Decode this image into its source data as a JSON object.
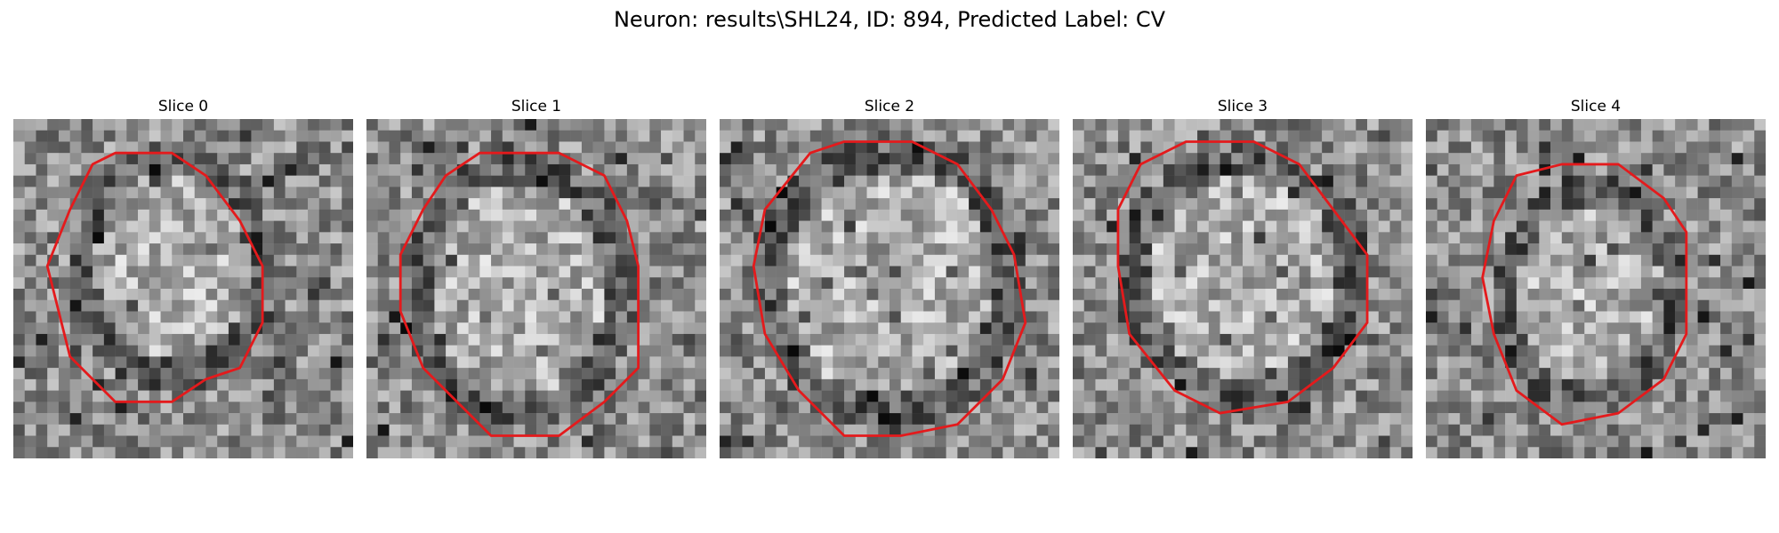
{
  "figure": {
    "title": "Neuron: results\\SHL24, ID: 894, Predicted Label: CV",
    "contour_color": "#e41a1c",
    "slices": [
      {
        "label": "Slice 0",
        "contour": [
          [
            7,
            4
          ],
          [
            9,
            3
          ],
          [
            14,
            3
          ],
          [
            17,
            5
          ],
          [
            20,
            9
          ],
          [
            22,
            13
          ],
          [
            22,
            18
          ],
          [
            20,
            22
          ],
          [
            17,
            23
          ],
          [
            14,
            25
          ],
          [
            9,
            25
          ],
          [
            5,
            21
          ],
          [
            4,
            17
          ],
          [
            3,
            13
          ],
          [
            5,
            8
          ]
        ]
      },
      {
        "label": "Slice 1",
        "contour": [
          [
            7,
            5
          ],
          [
            10,
            3
          ],
          [
            17,
            3
          ],
          [
            21,
            5
          ],
          [
            23,
            9
          ],
          [
            24,
            13
          ],
          [
            24,
            22
          ],
          [
            21,
            25
          ],
          [
            17,
            28
          ],
          [
            11,
            28
          ],
          [
            5,
            22
          ],
          [
            3,
            17
          ],
          [
            3,
            12
          ],
          [
            5,
            8
          ]
        ]
      },
      {
        "label": "Slice 2",
        "contour": [
          [
            8,
            3
          ],
          [
            11,
            2
          ],
          [
            17,
            2
          ],
          [
            21,
            4
          ],
          [
            24,
            8
          ],
          [
            26,
            12
          ],
          [
            27,
            18
          ],
          [
            25,
            23
          ],
          [
            21,
            27
          ],
          [
            16,
            28
          ],
          [
            11,
            28
          ],
          [
            7,
            24
          ],
          [
            4,
            19
          ],
          [
            3,
            13
          ],
          [
            4,
            8
          ]
        ]
      },
      {
        "label": "Slice 3",
        "contour": [
          [
            6,
            4
          ],
          [
            10,
            2
          ],
          [
            16,
            2
          ],
          [
            20,
            4
          ],
          [
            23,
            8
          ],
          [
            26,
            12
          ],
          [
            26,
            18
          ],
          [
            23,
            22
          ],
          [
            19,
            25
          ],
          [
            13,
            26
          ],
          [
            9,
            24
          ],
          [
            5,
            19
          ],
          [
            4,
            13
          ],
          [
            4,
            8
          ]
        ]
      },
      {
        "label": "Slice 4",
        "contour": [
          [
            8,
            5
          ],
          [
            12,
            4
          ],
          [
            17,
            4
          ],
          [
            21,
            7
          ],
          [
            23,
            10
          ],
          [
            23,
            19
          ],
          [
            21,
            23
          ],
          [
            17,
            26
          ],
          [
            12,
            27
          ],
          [
            8,
            24
          ],
          [
            6,
            19
          ],
          [
            5,
            14
          ],
          [
            6,
            9
          ]
        ]
      }
    ]
  }
}
